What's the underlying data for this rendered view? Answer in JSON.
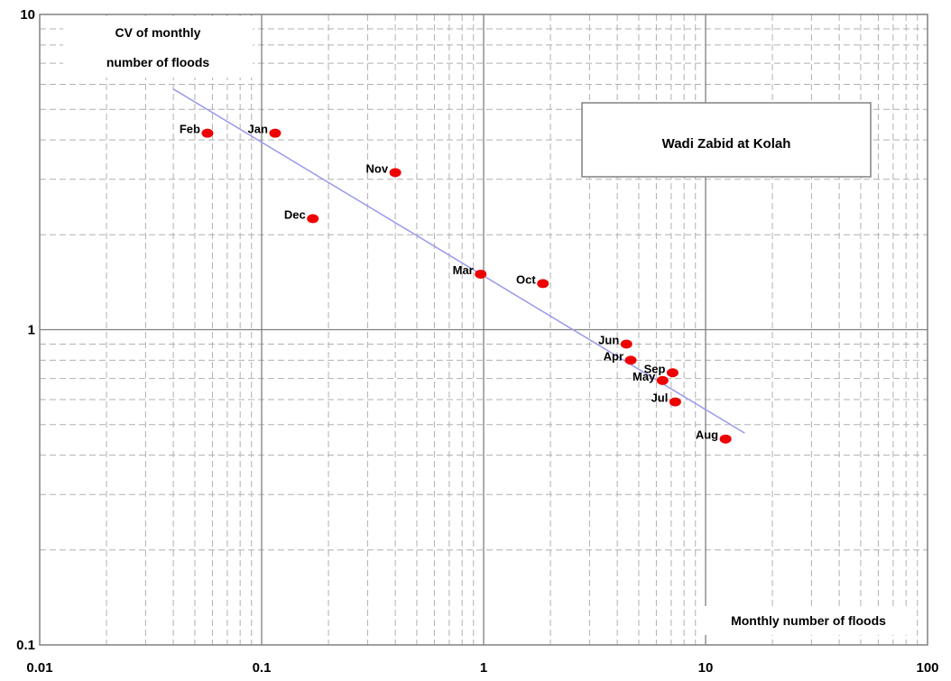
{
  "chart_data": {
    "type": "scatter",
    "title": "Wadi Zabid at Kolah",
    "xlabel": "Monthly number of floods",
    "ylabel_line1": "CV of monthly",
    "ylabel_line2": "number of floods",
    "x_scale": "log",
    "y_scale": "log",
    "xlim": [
      0.01,
      100
    ],
    "ylim": [
      0.1,
      10
    ],
    "x_ticks": [
      "0.01",
      "0.1",
      "1",
      "10",
      "100"
    ],
    "y_ticks": [
      "0.1",
      "1",
      "10"
    ],
    "grid": true,
    "point_color": "#ee0000",
    "trend_color": "#9999ee",
    "points": [
      {
        "label": "Jan",
        "x": 0.115,
        "y": 4.2
      },
      {
        "label": "Feb",
        "x": 0.057,
        "y": 4.2
      },
      {
        "label": "Mar",
        "x": 0.97,
        "y": 1.5
      },
      {
        "label": "Apr",
        "x": 4.6,
        "y": 0.8
      },
      {
        "label": "May",
        "x": 6.4,
        "y": 0.69
      },
      {
        "label": "Jun",
        "x": 4.4,
        "y": 0.9
      },
      {
        "label": "Jul",
        "x": 7.3,
        "y": 0.59
      },
      {
        "label": "Aug",
        "x": 12.3,
        "y": 0.45
      },
      {
        "label": "Sep",
        "x": 7.1,
        "y": 0.73
      },
      {
        "label": "Oct",
        "x": 1.85,
        "y": 1.4
      },
      {
        "label": "Nov",
        "x": 0.4,
        "y": 3.15
      },
      {
        "label": "Dec",
        "x": 0.17,
        "y": 2.25
      }
    ],
    "trendline": {
      "x": [
        0.04,
        15.0
      ],
      "y": [
        5.8,
        0.47
      ]
    }
  }
}
